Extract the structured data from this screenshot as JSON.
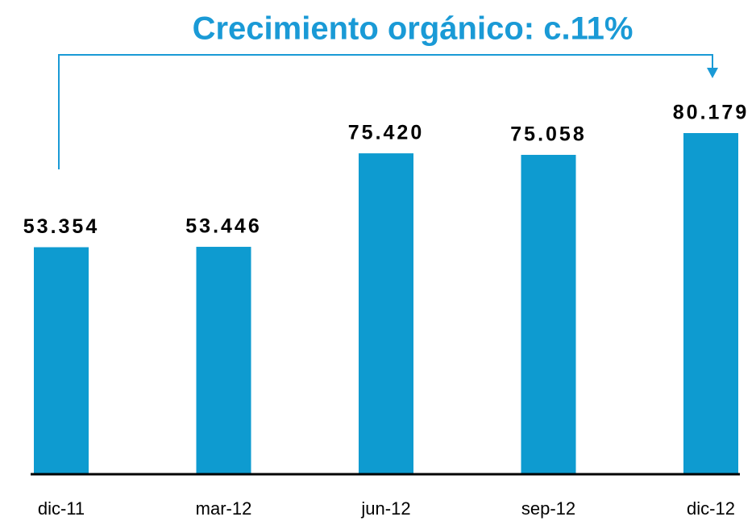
{
  "chart_data": {
    "type": "bar",
    "title": "Crecimiento orgánico: c.11%",
    "categories": [
      "dic-11",
      "mar-12",
      "jun-12",
      "sep-12",
      "dic-12"
    ],
    "values": [
      53354,
      53446,
      75420,
      75058,
      80179
    ],
    "value_labels": [
      "53.354",
      "53.446",
      "75.420",
      "75.058",
      "80.179"
    ],
    "color": "#0e9bd0"
  }
}
